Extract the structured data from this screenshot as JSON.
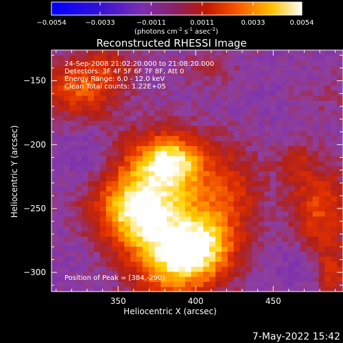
{
  "chart_data": {
    "type": "heatmap",
    "title": "Reconstructed RHESSI Image",
    "xlabel": "Heliocentric X (arcsec)",
    "ylabel": "Heliocentric Y (arcsec)",
    "xlim": [
      307,
      495
    ],
    "ylim": [
      -315,
      -126
    ],
    "x_ticks": [
      350,
      400,
      450
    ],
    "y_ticks": [
      -150,
      -200,
      -250,
      -300
    ],
    "colorbar": {
      "range": [
        -0.0054,
        0.0054
      ],
      "tick_values": [
        -0.0054,
        -0.0033,
        -0.0011,
        0.0011,
        0.0033,
        0.0054
      ],
      "tick_labels": [
        "-0.0054",
        "-0.0033",
        "-0.0011",
        "0.0011",
        "0.0033",
        "0.0054"
      ],
      "unit_label": "(photons cm",
      "unit_sup1": "-2",
      "unit_mid": " s",
      "unit_sup2": "-1",
      "unit_mid2": " asec",
      "unit_sup3": "-2",
      "unit_end": ")"
    },
    "annotations": [
      "24-Sep-2008 21:02:20.000 to 21:08:20.000",
      "Detectors: 3F 4F 5F 6F 7F 8F, Att 0",
      "Energy Range: 6.0 - 12.0 keV",
      "Clean     Total counts: 1.22E+05"
    ],
    "peak_label": "Position of Peak = [384,-290]",
    "peak": [
      384,
      -290
    ],
    "sources": [
      {
        "x": 385,
        "y": -290,
        "sx": 18,
        "sy": 22,
        "value": 0.0054
      },
      {
        "x": 370,
        "y": -235,
        "sx": 22,
        "sy": 28,
        "value": 0.0045
      },
      {
        "x": 385,
        "y": -212,
        "sx": 14,
        "sy": 14,
        "value": 0.0044
      },
      {
        "x": 360,
        "y": -255,
        "sx": 18,
        "sy": 18,
        "value": 0.0036
      },
      {
        "x": 420,
        "y": -245,
        "sx": 18,
        "sy": 30,
        "value": 0.003
      },
      {
        "x": 405,
        "y": -280,
        "sx": 14,
        "sy": 18,
        "value": 0.0035
      },
      {
        "x": 325,
        "y": -155,
        "sx": 18,
        "sy": 16,
        "value": 0.0036
      },
      {
        "x": 345,
        "y": -135,
        "sx": 10,
        "sy": 10,
        "value": 0.0015
      },
      {
        "x": 408,
        "y": -140,
        "sx": 12,
        "sy": 10,
        "value": 0.0012
      },
      {
        "x": 465,
        "y": -212,
        "sx": 8,
        "sy": 12,
        "value": 0.0014
      },
      {
        "x": 480,
        "y": -250,
        "sx": 14,
        "sy": 24,
        "value": 0.0032
      },
      {
        "x": 488,
        "y": -300,
        "sx": 8,
        "sy": 14,
        "value": 0.0024
      },
      {
        "x": 485,
        "y": -160,
        "sx": 10,
        "sy": 10,
        "value": 0.001
      },
      {
        "x": 330,
        "y": -210,
        "sx": 14,
        "sy": 14,
        "value": -0.0032
      },
      {
        "x": 440,
        "y": -260,
        "sx": 18,
        "sy": 18,
        "value": -0.0025
      },
      {
        "x": 465,
        "y": -295,
        "sx": 12,
        "sy": 12,
        "value": -0.003
      },
      {
        "x": 325,
        "y": -280,
        "sx": 14,
        "sy": 14,
        "value": -0.0018
      },
      {
        "x": 445,
        "y": -175,
        "sx": 16,
        "sy": 16,
        "value": -0.0018
      }
    ],
    "background_value": -0.0016,
    "colormap": [
      "#0000ff",
      "#5010c0",
      "#7a2fb0",
      "#8e3f9f",
      "#b0201a",
      "#e03000",
      "#ff7a00",
      "#ffd200",
      "#ffffff"
    ]
  },
  "footer": {
    "timestamp": "7-May-2022 15:42"
  }
}
